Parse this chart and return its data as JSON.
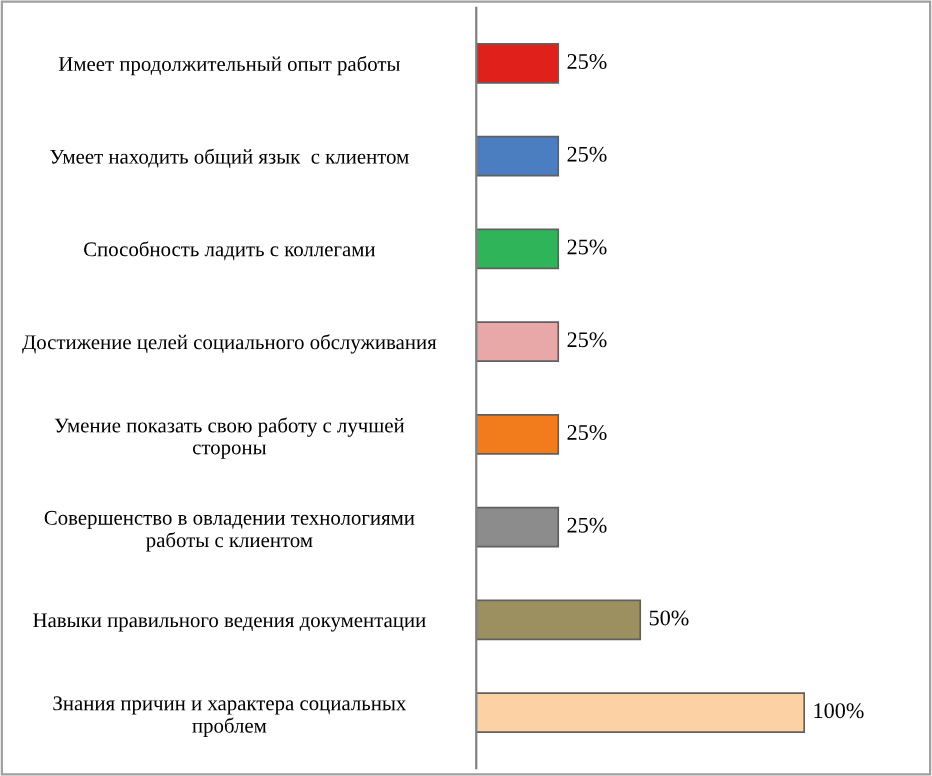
{
  "chart_data": {
    "type": "bar",
    "orientation": "horizontal",
    "categories": [
      "Имеет продолжительный опыт работы",
      "Умеет находить общий язык  с клиентом",
      "Способность ладить с коллегами",
      "Достижение целей социального обслуживания",
      "Умение показать свою работу с лучшей\nстороны",
      "Совершенство в овладении технологиями\nработы с клиентом",
      "Навыки правильного ведения документации",
      "Знания причин и характера социальных\nпроблем"
    ],
    "values": [
      25,
      25,
      25,
      25,
      25,
      25,
      50,
      100
    ],
    "colors": [
      "#e0201a",
      "#4a7ec0",
      "#2fb45a",
      "#e8a8a8",
      "#f27b1c",
      "#8c8c8c",
      "#9c9060",
      "#fcd2a4"
    ],
    "value_labels": [
      "25%",
      "25%",
      "25%",
      "25%",
      "25%",
      "25%",
      "50%",
      "100%"
    ],
    "grid": false,
    "legend": false
  }
}
